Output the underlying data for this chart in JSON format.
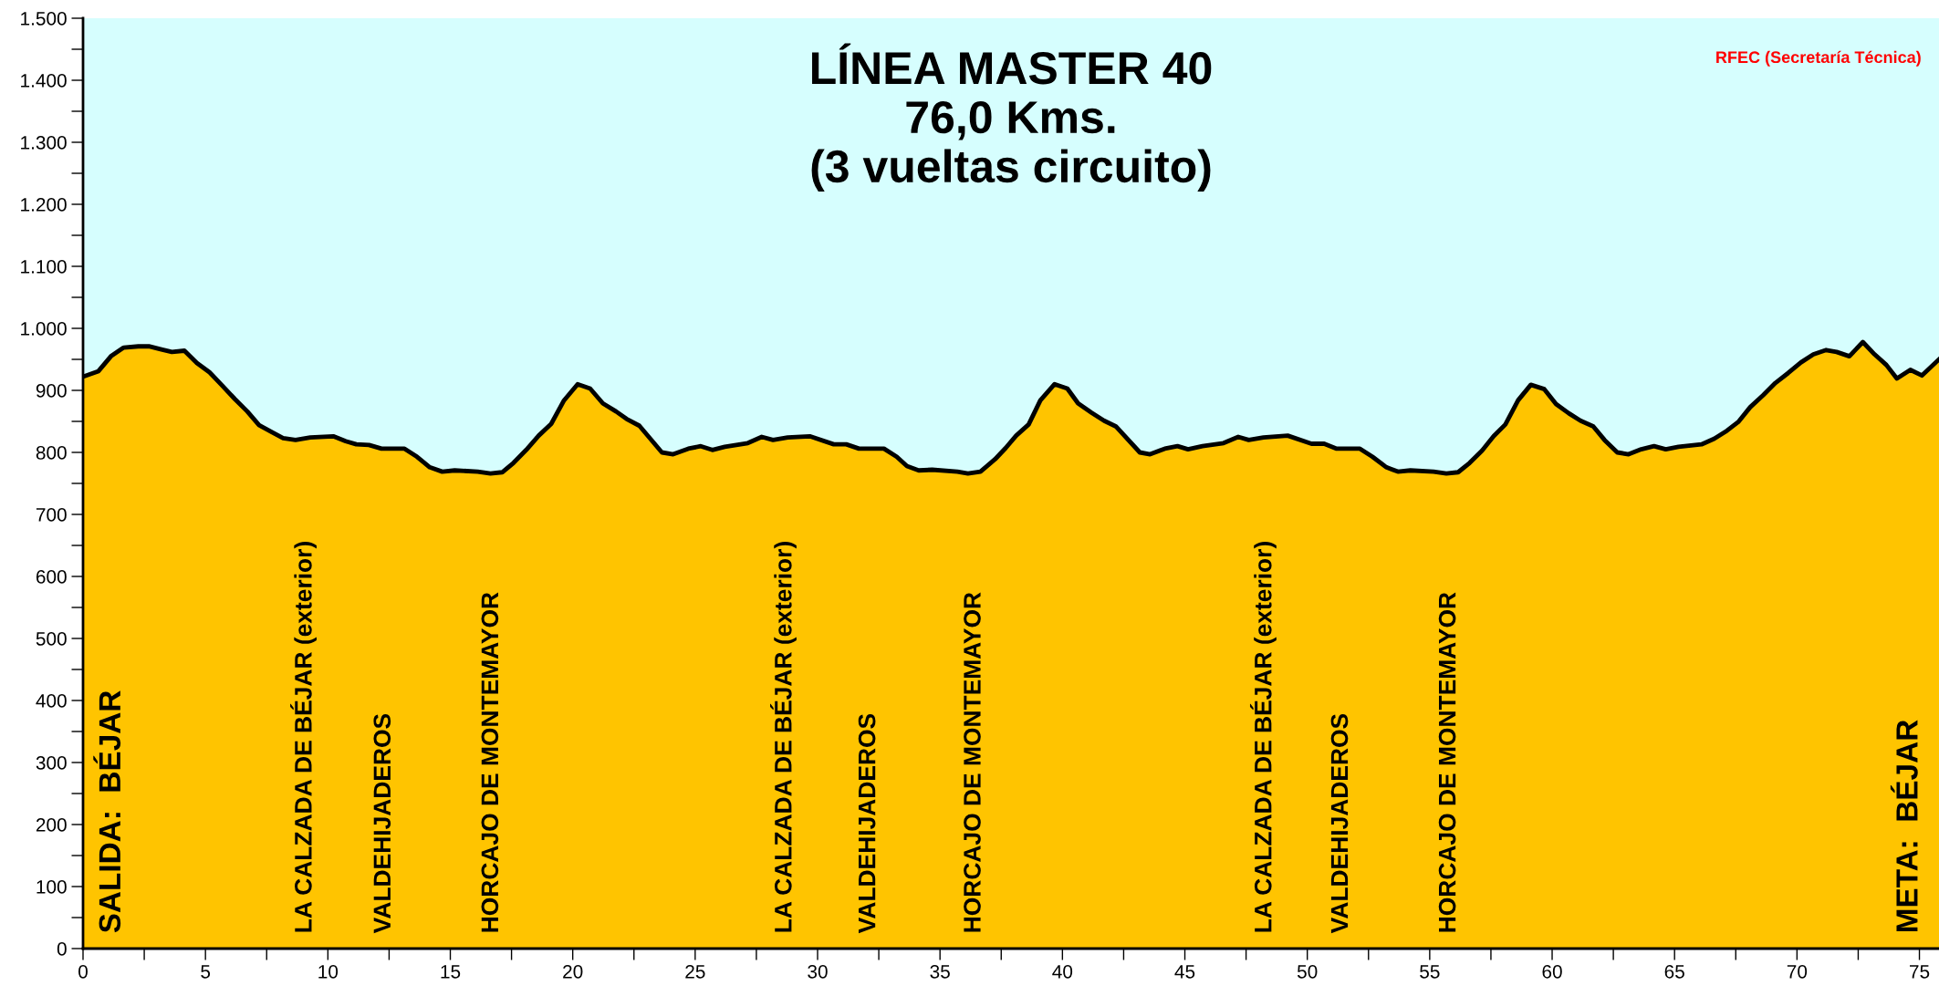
{
  "chart_data": {
    "type": "area",
    "title": "LÍNEA MASTER 40\n76,0 Kms.\n(3 vueltas circuito)",
    "x": [
      0,
      0.63,
      1.14,
      1.66,
      2.26,
      2.69,
      3.2,
      3.63,
      4.14,
      4.65,
      5.17,
      5.68,
      6.2,
      6.71,
      7.19,
      7.65,
      8.17,
      8.68,
      9.28,
      10.22,
      10.73,
      11.16,
      11.68,
      12.19,
      13.13,
      13.64,
      14.16,
      14.67,
      15.18,
      16.12,
      16.64,
      17.12,
      17.58,
      18.1,
      18.61,
      19.12,
      19.63,
      20.2,
      20.71,
      21.23,
      21.77,
      22.2,
      22.72,
      23.64,
      24.1,
      24.72,
      25.23,
      25.7,
      26.21,
      27.15,
      27.72,
      28.18,
      28.78,
      29.68,
      30.66,
      31.17,
      31.69,
      32.71,
      33.23,
      33.65,
      34.13,
      34.68,
      35.71,
      36.14,
      36.65,
      37.25,
      37.68,
      38.11,
      38.62,
      39.1,
      39.68,
      40.2,
      40.64,
      41.19,
      41.7,
      42.18,
      43.16,
      43.58,
      44.18,
      44.7,
      45.13,
      45.72,
      46.58,
      47.18,
      47.61,
      48.21,
      49.2,
      50.17,
      50.69,
      51.2,
      52.15,
      52.66,
      53.23,
      53.7,
      54.21,
      55.16,
      55.68,
      56.16,
      56.63,
      57.14,
      57.61,
      58.09,
      58.61,
      59.13,
      59.68,
      60.16,
      60.68,
      61.16,
      61.68,
      62.14,
      62.66,
      63.12,
      63.64,
      64.16,
      64.64,
      65.16,
      66.1,
      66.62,
      67.14,
      67.6,
      68.09,
      68.61,
      69.12,
      69.64,
      70.16,
      70.67,
      71.19,
      71.62,
      72.14,
      72.69,
      73.17,
      73.65,
      74.08,
      74.63,
      75.1,
      75.8
    ],
    "series": [
      {
        "color": "#ffc400",
        "values": [
          922,
          931,
          955,
          969,
          971,
          971,
          966,
          962,
          964,
          944,
          929,
          908,
          886,
          866,
          844,
          834,
          823,
          820,
          824,
          826,
          818,
          813,
          812,
          806,
          806,
          793,
          776,
          769,
          771,
          769,
          766,
          768,
          783,
          804,
          827,
          846,
          883,
          910,
          903,
          879,
          866,
          854,
          843,
          800,
          797,
          806,
          810,
          804,
          809,
          815,
          825,
          820,
          824,
          826,
          813,
          813,
          806,
          806,
          793,
          778,
          771,
          772,
          769,
          766,
          769,
          789,
          807,
          827,
          845,
          884,
          910,
          903,
          879,
          864,
          851,
          842,
          800,
          797,
          806,
          810,
          805,
          810,
          815,
          825,
          820,
          824,
          827,
          814,
          814,
          806,
          806,
          793,
          776,
          769,
          771,
          769,
          766,
          768,
          783,
          803,
          826,
          845,
          884,
          909,
          902,
          878,
          863,
          851,
          842,
          820,
          800,
          797,
          805,
          810,
          805,
          809,
          813,
          822,
          835,
          849,
          873,
          892,
          912,
          928,
          945,
          958,
          965,
          962,
          955,
          978,
          958,
          941,
          919,
          933,
          924,
          950
        ]
      }
    ],
    "xlim": [
      0,
      75.8
    ],
    "ylim": [
      0,
      1500
    ],
    "xticks": [
      0,
      {
        "value": 2.5,
        "label": null
      },
      5,
      {
        "value": 7.5,
        "label": null
      },
      10,
      {
        "value": 12.5,
        "label": null
      },
      15,
      {
        "value": 17.5,
        "label": null
      },
      20,
      {
        "value": 22.5,
        "label": null
      },
      25,
      {
        "value": 27.5,
        "label": null
      },
      30,
      {
        "value": 32.5,
        "label": null
      },
      35,
      {
        "value": 37.5,
        "label": null
      },
      40,
      {
        "value": 42.5,
        "label": null
      },
      45,
      {
        "value": 47.5,
        "label": null
      },
      50,
      {
        "value": 52.5,
        "label": null
      },
      55,
      {
        "value": 57.5,
        "label": null
      },
      60,
      {
        "value": 62.5,
        "label": null
      },
      65,
      {
        "value": 67.5,
        "label": null
      },
      70,
      {
        "value": 72.5,
        "label": null
      },
      75
    ],
    "yticks": [
      0,
      {
        "value": 50,
        "label": null
      },
      100,
      {
        "value": 150,
        "label": null
      },
      200,
      {
        "value": 250,
        "label": null
      },
      300,
      {
        "value": 350,
        "label": null
      },
      400,
      {
        "value": 450,
        "label": null
      },
      500,
      {
        "value": 550,
        "label": null
      },
      600,
      {
        "value": 650,
        "label": null
      },
      700,
      {
        "value": 750,
        "label": null
      },
      800,
      {
        "value": 850,
        "label": null
      },
      900,
      {
        "value": 950,
        "label": null
      },
      {
        "value": 1000,
        "label": "1.000"
      },
      {
        "value": 1050,
        "label": null
      },
      {
        "value": 1100,
        "label": "1.100"
      },
      {
        "value": 1150,
        "label": null
      },
      {
        "value": 1200,
        "label": "1.200"
      },
      {
        "value": 1250,
        "label": null
      },
      {
        "value": 1300,
        "label": "1.300"
      },
      {
        "value": 1350,
        "label": null
      },
      {
        "value": 1400,
        "label": "1.400"
      },
      {
        "value": 1450,
        "label": null
      },
      {
        "value": 1500,
        "label": "1.500"
      }
    ],
    "grid": false,
    "legend": false,
    "annotations": [
      "RFEC (Secretaría Técnica)",
      {
        "text": "SALIDA:  BÉJAR",
        "x": 1.2,
        "y": 0
      },
      {
        "text": "LA CALZADA DE BÉJAR (exterior)",
        "x": 9.0,
        "y": 0
      },
      {
        "text": "VALDEHIJADEROS",
        "x": 12.3,
        "y": 0
      },
      {
        "text": "HORCAJO DE MONTEMAYOR",
        "x": 16.7,
        "y": 0
      },
      {
        "text": "LA CALZADA DE BÉJAR (exterior)",
        "x": 28.6,
        "y": 0
      },
      {
        "text": "VALDEHIJADEROS",
        "x": 32.1,
        "y": 0
      },
      {
        "text": "HORCAJO DE MONTEMAYOR",
        "x": 36.4,
        "y": 0
      },
      {
        "text": "LA CALZADA DE BÉJAR (exterior)",
        "x": 48.2,
        "y": 0
      },
      {
        "text": "VALDEHIJADEROS",
        "x": 51.4,
        "y": 0
      },
      {
        "text": "HORCAJO DE MONTEMAYOR",
        "x": 55.8,
        "y": 0
      },
      {
        "text": "META:  BÉJAR",
        "x": 74.6,
        "y": 0
      }
    ]
  }
}
